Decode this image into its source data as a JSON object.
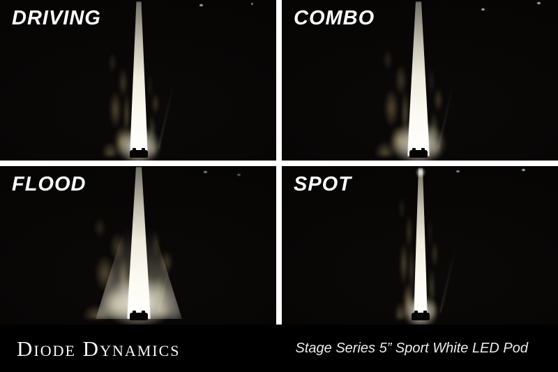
{
  "panels": [
    {
      "label": "DRIVING",
      "scene": "night road lit by driving beam pattern"
    },
    {
      "label": "COMBO",
      "scene": "night road lit by combo beam pattern"
    },
    {
      "label": "FLOOD",
      "scene": "night road lit by flood beam pattern"
    },
    {
      "label": "SPOT",
      "scene": "night road lit by spot beam pattern"
    }
  ],
  "footer": {
    "brand": "Diode Dynamics",
    "product": "Stage Series 5” Sport White LED Pod"
  },
  "colors": {
    "divider_white": "#ffffff",
    "photo_black": "#060504",
    "label_text": "#ffffff",
    "footer_background": "#000000",
    "footer_text": "#f2f2f2",
    "beam_core": "#ffffff",
    "gravel_tan": "#b99c66",
    "grass_green": "#8c9664"
  }
}
